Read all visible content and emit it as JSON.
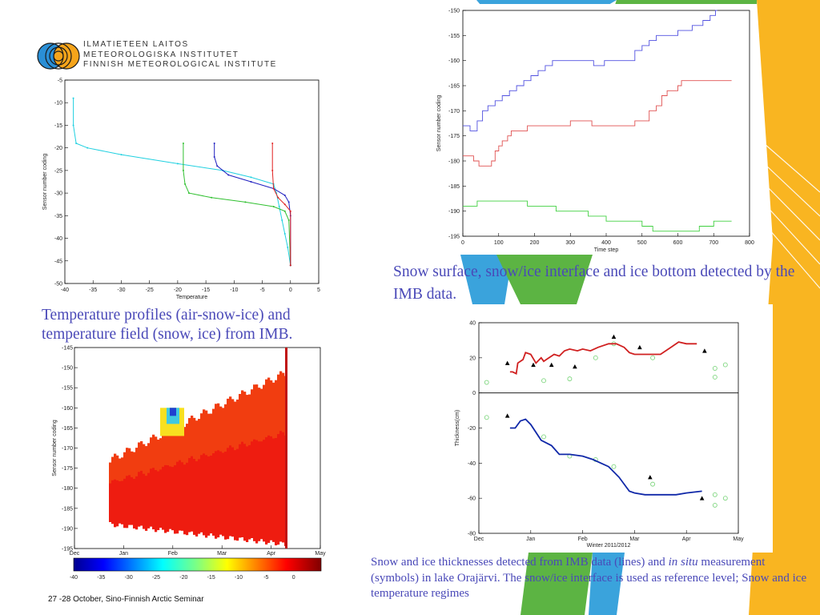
{
  "colors": {
    "accent_yellow": "#f9b521",
    "accent_green": "#5cb443",
    "accent_blue": "#3aa3dc",
    "caption_blue": "#4a49b8",
    "snow_line": "#d02020",
    "ice_line": "#1028a8"
  },
  "logo": {
    "icon": "fmi-globe-icon",
    "lines": [
      "ILMATIETEEN LAITOS",
      "METEOROLOGISKA INSTITUTET",
      "FINNISH METEOROLOGICAL INSTITUTE"
    ]
  },
  "captions": {
    "profiles": "Temperature profiles (air-snow-ice) and temperature field (snow, ice) from IMB.",
    "surface": "Snow surface, snow/ice interface and ice bottom detected by the IMB data.",
    "thickness_a": "Snow and ice thicknesses detected from IMB data (lines) and ",
    "thickness_italic": "in situ",
    "thickness_b": " measurement (symbols) in lake Orajärvi. The snow/ice interface is used as reference level; Snow and ice temperature regimes"
  },
  "footer": "27 -28 October, Sino-Finnish Arctic Seminar",
  "chart_data": [
    {
      "type": "line",
      "xlabel": "Temperature",
      "ylabel": "Sensor number coding",
      "xlim": [
        -40,
        5
      ],
      "ylim": [
        -50,
        -5
      ],
      "xticks": [
        -40,
        -35,
        -30,
        -25,
        -20,
        -15,
        -10,
        -5,
        0,
        5
      ],
      "yticks": [
        -5,
        -10,
        -15,
        -20,
        -25,
        -30,
        -35,
        -40,
        -45,
        -50
      ],
      "series": [
        {
          "color": "#20d0e0",
          "points": [
            [
              -38.5,
              -9
            ],
            [
              -38.5,
              -15
            ],
            [
              -38,
              -19
            ],
            [
              -36,
              -20
            ],
            [
              -30,
              -21.5
            ],
            [
              -20,
              -23.5
            ],
            [
              -12,
              -25
            ],
            [
              -7,
              -26.5
            ],
            [
              -3,
              -28
            ],
            [
              -2.5,
              -30
            ],
            [
              -2,
              -33
            ],
            [
              -1.5,
              -36
            ],
            [
              -1,
              -39
            ],
            [
              -0.5,
              -42
            ],
            [
              0,
              -46
            ]
          ]
        },
        {
          "color": "#30c030",
          "points": [
            [
              -19,
              -19
            ],
            [
              -19,
              -25
            ],
            [
              -18.7,
              -28
            ],
            [
              -18,
              -30
            ],
            [
              -14,
              -31
            ],
            [
              -8,
              -32
            ],
            [
              -3,
              -33
            ],
            [
              -1,
              -34
            ],
            [
              -0.3,
              -36
            ],
            [
              0,
              -46
            ]
          ]
        },
        {
          "color": "#2020c0",
          "points": [
            [
              -13.5,
              -19
            ],
            [
              -13.5,
              -22
            ],
            [
              -13,
              -24
            ],
            [
              -11,
              -26
            ],
            [
              -7,
              -27.5
            ],
            [
              -3,
              -29
            ],
            [
              -1,
              -30.5
            ],
            [
              -0.3,
              -32
            ],
            [
              0,
              -35
            ],
            [
              0,
              -46
            ]
          ]
        },
        {
          "color": "#e02020",
          "points": [
            [
              -3.2,
              -19
            ],
            [
              -3.2,
              -25
            ],
            [
              -3,
              -29
            ],
            [
              -2.2,
              -31
            ],
            [
              -1,
              -32.5
            ],
            [
              0,
              -34
            ],
            [
              0,
              -46
            ]
          ]
        }
      ]
    },
    {
      "type": "line",
      "xlabel": "Time step",
      "ylabel": "Sensor number coding",
      "xlim": [
        0,
        800
      ],
      "ylim": [
        -195,
        -150
      ],
      "xticks": [
        0,
        100,
        200,
        300,
        400,
        500,
        600,
        700,
        800
      ],
      "yticks": [
        -150,
        -155,
        -160,
        -165,
        -170,
        -175,
        -180,
        -185,
        -190,
        -195
      ],
      "series": [
        {
          "color": "#5050e0",
          "points": [
            [
              0,
              -173
            ],
            [
              20,
              -173
            ],
            [
              20,
              -174
            ],
            [
              40,
              -174
            ],
            [
              40,
              -172
            ],
            [
              55,
              -172
            ],
            [
              55,
              -170
            ],
            [
              70,
              -170
            ],
            [
              70,
              -169
            ],
            [
              90,
              -169
            ],
            [
              90,
              -168
            ],
            [
              110,
              -168
            ],
            [
              110,
              -167
            ],
            [
              130,
              -167
            ],
            [
              130,
              -166
            ],
            [
              150,
              -166
            ],
            [
              150,
              -165
            ],
            [
              170,
              -165
            ],
            [
              170,
              -164
            ],
            [
              190,
              -164
            ],
            [
              190,
              -163
            ],
            [
              210,
              -163
            ],
            [
              210,
              -162
            ],
            [
              230,
              -162
            ],
            [
              230,
              -161
            ],
            [
              250,
              -161
            ],
            [
              250,
              -160
            ],
            [
              365,
              -160
            ],
            [
              365,
              -161
            ],
            [
              395,
              -161
            ],
            [
              395,
              -160
            ],
            [
              480,
              -160
            ],
            [
              480,
              -158
            ],
            [
              500,
              -158
            ],
            [
              500,
              -157
            ],
            [
              520,
              -157
            ],
            [
              520,
              -156
            ],
            [
              540,
              -156
            ],
            [
              540,
              -155
            ],
            [
              600,
              -155
            ],
            [
              600,
              -154
            ],
            [
              640,
              -154
            ],
            [
              640,
              -153
            ],
            [
              670,
              -153
            ],
            [
              670,
              -152
            ],
            [
              690,
              -152
            ],
            [
              690,
              -151
            ],
            [
              705,
              -151
            ],
            [
              705,
              -150
            ],
            [
              710,
              -150
            ]
          ]
        },
        {
          "color": "#e05050",
          "points": [
            [
              0,
              -179
            ],
            [
              30,
              -179
            ],
            [
              30,
              -180
            ],
            [
              45,
              -180
            ],
            [
              45,
              -181
            ],
            [
              80,
              -181
            ],
            [
              80,
              -180
            ],
            [
              90,
              -180
            ],
            [
              90,
              -178
            ],
            [
              100,
              -178
            ],
            [
              100,
              -177
            ],
            [
              110,
              -177
            ],
            [
              110,
              -176
            ],
            [
              125,
              -176
            ],
            [
              125,
              -175
            ],
            [
              135,
              -175
            ],
            [
              135,
              -174
            ],
            [
              180,
              -174
            ],
            [
              180,
              -173
            ],
            [
              300,
              -173
            ],
            [
              300,
              -172
            ],
            [
              360,
              -172
            ],
            [
              360,
              -173
            ],
            [
              480,
              -173
            ],
            [
              480,
              -172
            ],
            [
              520,
              -172
            ],
            [
              520,
              -170
            ],
            [
              540,
              -170
            ],
            [
              540,
              -169
            ],
            [
              555,
              -169
            ],
            [
              555,
              -167
            ],
            [
              570,
              -167
            ],
            [
              570,
              -166
            ],
            [
              600,
              -166
            ],
            [
              600,
              -165
            ],
            [
              610,
              -165
            ],
            [
              610,
              -164
            ],
            [
              750,
              -164
            ]
          ]
        },
        {
          "color": "#40d040",
          "points": [
            [
              0,
              -189
            ],
            [
              40,
              -189
            ],
            [
              40,
              -188
            ],
            [
              180,
              -188
            ],
            [
              180,
              -189
            ],
            [
              260,
              -189
            ],
            [
              260,
              -190
            ],
            [
              350,
              -190
            ],
            [
              350,
              -191
            ],
            [
              400,
              -191
            ],
            [
              400,
              -192
            ],
            [
              500,
              -192
            ],
            [
              500,
              -193
            ],
            [
              530,
              -193
            ],
            [
              530,
              -194
            ],
            [
              660,
              -194
            ],
            [
              660,
              -193
            ],
            [
              700,
              -193
            ],
            [
              700,
              -192
            ],
            [
              750,
              -192
            ]
          ]
        }
      ]
    },
    {
      "type": "heatmap",
      "ylabel": "Sensor number coding",
      "categories": [
        "Dec",
        "Jan",
        "Feb",
        "Mar",
        "Apr",
        "May"
      ],
      "ylim": [
        -195,
        -145
      ],
      "yticks": [
        -145,
        -150,
        -155,
        -160,
        -165,
        -170,
        -175,
        -180,
        -185,
        -190,
        -195
      ],
      "colorbar": {
        "range": [
          -40,
          5
        ],
        "ticks": [
          -40,
          -35,
          -30,
          -25,
          -20,
          -15,
          -10,
          -5,
          0
        ]
      }
    },
    {
      "type": "line",
      "xlabel": "Winter 2011/2012",
      "ylabel": "Thickness(cm)",
      "categories": [
        "Dec",
        "Jan",
        "Feb",
        "Mar",
        "Apr",
        "May"
      ],
      "ylim": [
        -80,
        40
      ],
      "yticks": [
        40,
        20,
        0,
        -20,
        -40,
        -60,
        -80
      ],
      "series": [
        {
          "color": "#d02020",
          "points": [
            [
              0.6,
              12
            ],
            [
              0.65,
              12
            ],
            [
              0.72,
              11
            ],
            [
              0.75,
              17
            ],
            [
              0.85,
              19
            ],
            [
              0.9,
              23
            ],
            [
              1.0,
              22
            ],
            [
              1.1,
              17
            ],
            [
              1.2,
              20
            ],
            [
              1.25,
              18
            ],
            [
              1.3,
              19
            ],
            [
              1.45,
              22
            ],
            [
              1.55,
              21
            ],
            [
              1.65,
              24
            ],
            [
              1.75,
              25
            ],
            [
              1.9,
              24
            ],
            [
              2.0,
              25
            ],
            [
              2.15,
              24
            ],
            [
              2.3,
              26
            ],
            [
              2.5,
              28
            ],
            [
              2.65,
              28
            ],
            [
              2.8,
              26
            ],
            [
              2.9,
              23
            ],
            [
              3.0,
              22
            ],
            [
              3.5,
              22
            ],
            [
              3.7,
              26
            ],
            [
              3.85,
              29
            ],
            [
              4.0,
              28
            ],
            [
              4.2,
              28
            ]
          ]
        },
        {
          "color": "#1028a8",
          "points": [
            [
              0.6,
              -20
            ],
            [
              0.7,
              -20
            ],
            [
              0.8,
              -16
            ],
            [
              0.9,
              -15
            ],
            [
              1.0,
              -18
            ],
            [
              1.2,
              -27
            ],
            [
              1.4,
              -30
            ],
            [
              1.55,
              -35
            ],
            [
              1.75,
              -35
            ],
            [
              2.0,
              -36
            ],
            [
              2.2,
              -38
            ],
            [
              2.5,
              -42
            ],
            [
              2.7,
              -48
            ],
            [
              2.9,
              -56
            ],
            [
              3.0,
              -57
            ],
            [
              3.2,
              -58
            ],
            [
              3.5,
              -58
            ],
            [
              3.8,
              -58
            ],
            [
              4.0,
              -57
            ],
            [
              4.3,
              -56
            ]
          ]
        }
      ],
      "triangles": [
        [
          0.55,
          17
        ],
        [
          1.05,
          16
        ],
        [
          1.4,
          16
        ],
        [
          1.85,
          15
        ],
        [
          2.6,
          32
        ],
        [
          3.1,
          26
        ],
        [
          3.3,
          -48
        ],
        [
          4.35,
          24
        ],
        [
          0.55,
          -13
        ],
        [
          4.3,
          -60
        ]
      ],
      "circles": [
        [
          0.15,
          6
        ],
        [
          1.25,
          7
        ],
        [
          1.75,
          8
        ],
        [
          2.25,
          20
        ],
        [
          2.6,
          28
        ],
        [
          3.35,
          20
        ],
        [
          4.55,
          14
        ],
        [
          4.55,
          9
        ],
        [
          4.75,
          16
        ],
        [
          0.15,
          -14
        ],
        [
          1.25,
          -25
        ],
        [
          1.75,
          -36
        ],
        [
          2.25,
          -38
        ],
        [
          2.6,
          -42
        ],
        [
          3.35,
          -52
        ],
        [
          4.55,
          -58
        ],
        [
          4.55,
          -64
        ],
        [
          4.75,
          -60
        ]
      ]
    }
  ]
}
